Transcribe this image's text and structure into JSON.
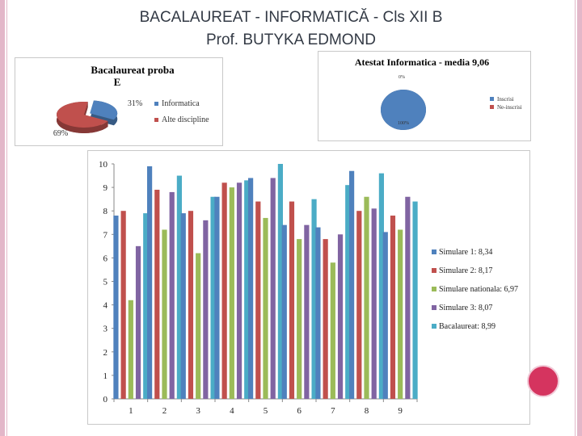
{
  "slide": {
    "title_line1": "BACALAUREAT  - INFORMATICĂ - Cls XII B",
    "title_line2": "Prof. BUTYKA EDMOND"
  },
  "colors": {
    "series": [
      "#4f81bd",
      "#c0504d",
      "#9bbb59",
      "#8064a2",
      "#4bacc6"
    ],
    "frame": "#e3b7c9",
    "accent_circle": "#d5345f"
  },
  "chart_data": [
    {
      "type": "pie",
      "title": "Bacalaureat proba E",
      "slices": [
        {
          "label": "Informatica",
          "value": 31,
          "value_label": "31%",
          "color": "#4f81bd"
        },
        {
          "label": "Alte discipline",
          "value": 69,
          "value_label": "69%",
          "color": "#c0504d"
        }
      ],
      "legend": "right"
    },
    {
      "type": "pie",
      "title": "Atestat Informatica - media 9,06",
      "slices": [
        {
          "label": "Inscrisi",
          "value": 100,
          "value_label": "100%",
          "color": "#4f81bd"
        },
        {
          "label": "Ne-inscrisi",
          "value": 0,
          "value_label": "0%",
          "color": "#c0504d"
        }
      ],
      "legend": "right"
    },
    {
      "type": "bar",
      "categories": [
        "1",
        "2",
        "3",
        "4",
        "5",
        "6",
        "7",
        "8",
        "9"
      ],
      "ylim": [
        0,
        10
      ],
      "yticks": [
        "0",
        "1",
        "2",
        "3",
        "4",
        "5",
        "6",
        "7",
        "8",
        "9",
        "10"
      ],
      "legend": "right",
      "series": [
        {
          "name": "Simulare 1: 8,34",
          "values": [
            7.8,
            9.9,
            7.9,
            8.6,
            9.4,
            7.4,
            7.3,
            9.7,
            7.1
          ]
        },
        {
          "name": "Simulare 2: 8,17",
          "values": [
            8.0,
            8.9,
            8.0,
            9.2,
            8.4,
            8.4,
            6.8,
            8.0,
            7.8
          ]
        },
        {
          "name": "Simulare nationala: 6,97",
          "values": [
            4.2,
            7.2,
            6.2,
            9.0,
            7.7,
            6.8,
            5.8,
            8.6,
            7.2
          ]
        },
        {
          "name": "Simulare 3: 8,07",
          "values": [
            6.5,
            8.8,
            7.6,
            9.2,
            9.4,
            7.4,
            7.0,
            8.1,
            8.6
          ]
        },
        {
          "name": "Bacalaureat: 8,99",
          "values": [
            7.9,
            9.5,
            8.6,
            9.3,
            10.0,
            8.5,
            9.1,
            9.6,
            8.4
          ]
        }
      ]
    }
  ]
}
